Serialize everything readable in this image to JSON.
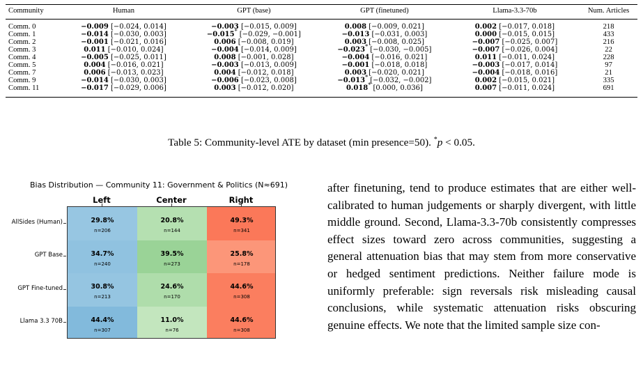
{
  "table": {
    "headers": [
      "Community",
      "Human",
      "GPT (base)",
      "GPT (finetuned)",
      "Llama-3.3-70b",
      "Num. Articles"
    ],
    "rows": [
      {
        "community": "Comm. 0",
        "cells": [
          {
            "est": "−0.009",
            "sig": false,
            "ci": "[−0.024, 0.014]"
          },
          {
            "est": "−0.003",
            "sig": false,
            "ci": "[−0.015, 0.009]"
          },
          {
            "est": "0.008",
            "sig": false,
            "ci": "[−0.009, 0.021]"
          },
          {
            "est": "0.002",
            "sig": false,
            "ci": "[−0.017, 0.018]"
          }
        ],
        "num": "218"
      },
      {
        "community": "Comm. 1",
        "cells": [
          {
            "est": "−0.014",
            "sig": false,
            "ci": "[−0.030, 0.003]"
          },
          {
            "est": "−0.015",
            "sig": true,
            "ci": "[−0.029, −0.001]"
          },
          {
            "est": "−0.013",
            "sig": false,
            "ci": "[−0.031, 0.003]"
          },
          {
            "est": "0.000",
            "sig": false,
            "ci": "[−0.015, 0.015]"
          }
        ],
        "num": "433"
      },
      {
        "community": "Comm. 2",
        "cells": [
          {
            "est": "−0.001",
            "sig": false,
            "ci": "[−0.021, 0.016]"
          },
          {
            "est": "0.006",
            "sig": false,
            "ci": "[−0.008, 0.019]"
          },
          {
            "est": "0.003",
            "sig": false,
            "ci": "[−0.008, 0.025]"
          },
          {
            "est": "−0.007",
            "sig": false,
            "ci": "[−0.025, 0.007]"
          }
        ],
        "num": "216"
      },
      {
        "community": "Comm. 3",
        "cells": [
          {
            "est": "0.011",
            "sig": false,
            "ci": "[−0.010, 0.024]"
          },
          {
            "est": "−0.004",
            "sig": false,
            "ci": "[−0.014, 0.009]"
          },
          {
            "est": "−0.023",
            "sig": true,
            "ci": "[−0.030, −0.005]"
          },
          {
            "est": "−0.007",
            "sig": false,
            "ci": "[−0.026, 0.004]"
          }
        ],
        "num": "22"
      },
      {
        "community": "Comm. 4",
        "cells": [
          {
            "est": "−0.005",
            "sig": false,
            "ci": "[−0.025, 0.011]"
          },
          {
            "est": "0.008",
            "sig": false,
            "ci": "[−0.001, 0.028]"
          },
          {
            "est": "−0.004",
            "sig": false,
            "ci": "[−0.016, 0.021]"
          },
          {
            "est": "0.011",
            "sig": false,
            "ci": "[−0.011, 0.024]"
          }
        ],
        "num": "228"
      },
      {
        "community": "Comm. 5",
        "cells": [
          {
            "est": "0.004",
            "sig": false,
            "ci": "[−0.016, 0.021]"
          },
          {
            "est": "−0.003",
            "sig": false,
            "ci": "[−0.013, 0.009]"
          },
          {
            "est": "−0.001",
            "sig": false,
            "ci": "[−0.018, 0.018]"
          },
          {
            "est": "−0.003",
            "sig": false,
            "ci": "[−0.017, 0.014]"
          }
        ],
        "num": "97"
      },
      {
        "community": "Comm. 7",
        "cells": [
          {
            "est": "0.006",
            "sig": false,
            "ci": "[−0.013, 0.023]"
          },
          {
            "est": "0.004",
            "sig": false,
            "ci": "[−0.012, 0.018]"
          },
          {
            "est": "0.003",
            "sig": false,
            "ci": "[−0.020, 0.021]"
          },
          {
            "est": "−0.004",
            "sig": false,
            "ci": "[−0.018, 0.016]"
          }
        ],
        "num": "21"
      },
      {
        "community": "Comm. 9",
        "cells": [
          {
            "est": "−0.014",
            "sig": false,
            "ci": "[−0.030, 0.003]"
          },
          {
            "est": "−0.006",
            "sig": false,
            "ci": "[−0.023, 0.008]"
          },
          {
            "est": "−0.013",
            "sig": true,
            "ci": "[−0.032, −0.002]"
          },
          {
            "est": "0.002",
            "sig": false,
            "ci": "[−0.015, 0.021]"
          }
        ],
        "num": "335"
      },
      {
        "community": "Comm. 11",
        "cells": [
          {
            "est": "−0.017",
            "sig": false,
            "ci": "[−0.029, 0.006]"
          },
          {
            "est": "0.003",
            "sig": false,
            "ci": "[−0.012, 0.020]"
          },
          {
            "est": "0.018",
            "sig": true,
            "ci": "[0.000, 0.036]"
          },
          {
            "est": "0.007",
            "sig": false,
            "ci": "[−0.011, 0.024]"
          }
        ],
        "num": "691"
      }
    ]
  },
  "caption": {
    "text": "Table 5: Community-level ATE by dataset (min presence=50).",
    "star": "*",
    "p_var": "p",
    "p_rest": " < 0.05."
  },
  "chart_data": {
    "type": "heatmap",
    "title": "Bias Distribution — Community 11: Government & Politics (N≈691)",
    "columns": [
      "Left",
      "Center",
      "Right"
    ],
    "rows": [
      "AllSides (Human)",
      "GPT Base",
      "GPT Fine-tuned",
      "Llama 3.3 70B"
    ],
    "values": [
      [
        29.8,
        20.8,
        49.3
      ],
      [
        34.7,
        39.5,
        25.8
      ],
      [
        30.8,
        24.6,
        44.6
      ],
      [
        44.4,
        11.0,
        44.6
      ]
    ],
    "labels": [
      [
        "29.8%",
        "20.8%",
        "49.3%"
      ],
      [
        "34.7%",
        "39.5%",
        "25.8%"
      ],
      [
        "30.8%",
        "24.6%",
        "44.6%"
      ],
      [
        "44.4%",
        "11.0%",
        "44.6%"
      ]
    ],
    "counts": [
      [
        "n=206",
        "n=144",
        "n=341"
      ],
      [
        "n=240",
        "n=273",
        "n=178"
      ],
      [
        "n=213",
        "n=170",
        "n=308"
      ],
      [
        "n=307",
        "n=76",
        "n=308"
      ]
    ],
    "column_colors": {
      "Left": {
        "light": "#c2dded",
        "dark": "#6baed6"
      },
      "Center": {
        "light": "#d3eecd",
        "dark": "#7cc57b"
      },
      "Right": {
        "light": "#fcb79c",
        "dark": "#fb6a4a"
      }
    }
  },
  "body_text": "after finetuning, tend to produce estimates that are either well-calibrated to human judgements or sharply divergent, with little middle ground. Second, Llama-3.3-70b consistently compresses effect sizes toward zero across communities, suggesting a general attenuation bias that may stem from more conservative or hedged sentiment predictions. Neither failure mode is uniformly preferable: sign reversals risk misleading causal conclusions, while systematic attenuation risks obscuring genuine effects. We note that the limited sample size con-"
}
